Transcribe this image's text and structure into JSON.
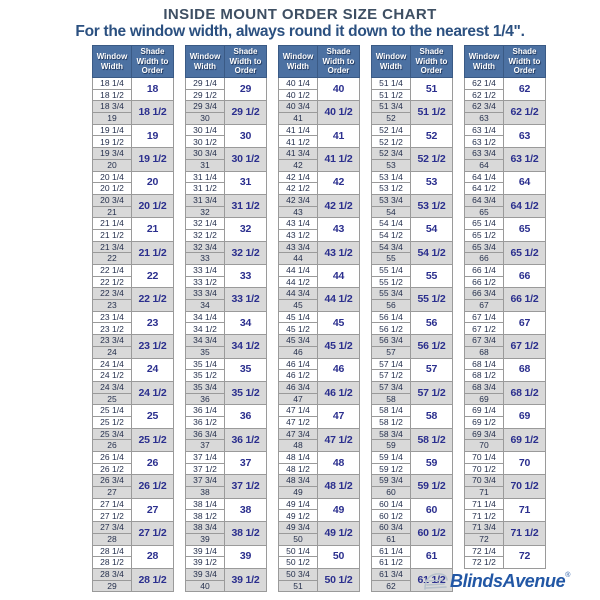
{
  "title": "INSIDE MOUNT ORDER SIZE CHART",
  "subtitle": "For the window width, always round it down to the nearest 1/4\".",
  "logo": {
    "text": "BlindsAvenue",
    "mark": "®"
  },
  "colors": {
    "header_bg": "#4c71a2",
    "header_text": "#ffffff",
    "row_alt_bg": "#d9d9d9",
    "row_bg": "#ffffff",
    "window_text": "#25304d",
    "shade_text": "#2b2f8e",
    "title_text": "#3e4f63",
    "subtitle_text": "#2b5080",
    "logo_text": "#2257a5",
    "grid_line": "#9a9a9a"
  },
  "chart_data": {
    "type": "table",
    "title": "INSIDE MOUNT ORDER SIZE CHART",
    "note": "For the window width, always round it down to the nearest 1/4\".",
    "columns_header": [
      "Window Width",
      "Shade Width to Order"
    ],
    "row_format": [
      "window_width_row1",
      "window_width_row2",
      "shade_width_to_order"
    ],
    "columns": [
      {
        "entries": [
          [
            "18 1/4",
            "18 1/2",
            "18"
          ],
          [
            "18 3/4",
            "19",
            "18 1/2"
          ],
          [
            "19 1/4",
            "19 1/2",
            "19"
          ],
          [
            "19 3/4",
            "20",
            "19 1/2"
          ],
          [
            "20 1/4",
            "20 1/2",
            "20"
          ],
          [
            "20 3/4",
            "21",
            "20 1/2"
          ],
          [
            "21 1/4",
            "21 1/2",
            "21"
          ],
          [
            "21 3/4",
            "22",
            "21 1/2"
          ],
          [
            "22 1/4",
            "22 1/2",
            "22"
          ],
          [
            "22 3/4",
            "23",
            "22 1/2"
          ],
          [
            "23 1/4",
            "23 1/2",
            "23"
          ],
          [
            "23 3/4",
            "24",
            "23 1/2"
          ],
          [
            "24 1/4",
            "24 1/2",
            "24"
          ],
          [
            "24 3/4",
            "25",
            "24 1/2"
          ],
          [
            "25 1/4",
            "25 1/2",
            "25"
          ],
          [
            "25 3/4",
            "26",
            "25 1/2"
          ],
          [
            "26 1/4",
            "26 1/2",
            "26"
          ],
          [
            "26 3/4",
            "27",
            "26 1/2"
          ],
          [
            "27 1/4",
            "27 1/2",
            "27"
          ],
          [
            "27 3/4",
            "28",
            "27 1/2"
          ],
          [
            "28 1/4",
            "28 1/2",
            "28"
          ],
          [
            "28 3/4",
            "29",
            "28 1/2"
          ]
        ]
      },
      {
        "entries": [
          [
            "29 1/4",
            "29 1/2",
            "29"
          ],
          [
            "29 3/4",
            "30",
            "29 1/2"
          ],
          [
            "30 1/4",
            "30 1/2",
            "30"
          ],
          [
            "30 3/4",
            "31",
            "30 1/2"
          ],
          [
            "31 1/4",
            "31 1/2",
            "31"
          ],
          [
            "31 3/4",
            "32",
            "31 1/2"
          ],
          [
            "32 1/4",
            "32 1/2",
            "32"
          ],
          [
            "32 3/4",
            "33",
            "32 1/2"
          ],
          [
            "33 1/4",
            "33 1/2",
            "33"
          ],
          [
            "33 3/4",
            "34",
            "33 1/2"
          ],
          [
            "34 1/4",
            "34 1/2",
            "34"
          ],
          [
            "34 3/4",
            "35",
            "34 1/2"
          ],
          [
            "35 1/4",
            "35 1/2",
            "35"
          ],
          [
            "35 3/4",
            "36",
            "35 1/2"
          ],
          [
            "36 1/4",
            "36 1/2",
            "36"
          ],
          [
            "36 3/4",
            "37",
            "36 1/2"
          ],
          [
            "37 1/4",
            "37 1/2",
            "37"
          ],
          [
            "37 3/4",
            "38",
            "37 1/2"
          ],
          [
            "38 1/4",
            "38 1/2",
            "38"
          ],
          [
            "38 3/4",
            "39",
            "38 1/2"
          ],
          [
            "39 1/4",
            "39 1/2",
            "39"
          ],
          [
            "39 3/4",
            "40",
            "39 1/2"
          ]
        ]
      },
      {
        "entries": [
          [
            "40 1/4",
            "40 1/2",
            "40"
          ],
          [
            "40 3/4",
            "41",
            "40 1/2"
          ],
          [
            "41 1/4",
            "41 1/2",
            "41"
          ],
          [
            "41 3/4",
            "42",
            "41 1/2"
          ],
          [
            "42 1/4",
            "42 1/2",
            "42"
          ],
          [
            "42 3/4",
            "43",
            "42 1/2"
          ],
          [
            "43 1/4",
            "43 1/2",
            "43"
          ],
          [
            "43 3/4",
            "44",
            "43 1/2"
          ],
          [
            "44 1/4",
            "44 1/2",
            "44"
          ],
          [
            "44 3/4",
            "45",
            "44 1/2"
          ],
          [
            "45 1/4",
            "45 1/2",
            "45"
          ],
          [
            "45 3/4",
            "46",
            "45 1/2"
          ],
          [
            "46 1/4",
            "46 1/2",
            "46"
          ],
          [
            "46 3/4",
            "47",
            "46 1/2"
          ],
          [
            "47 1/4",
            "47 1/2",
            "47"
          ],
          [
            "47 3/4",
            "48",
            "47 1/2"
          ],
          [
            "48 1/4",
            "48 1/2",
            "48"
          ],
          [
            "48 3/4",
            "49",
            "48 1/2"
          ],
          [
            "49 1/4",
            "49 1/2",
            "49"
          ],
          [
            "49 3/4",
            "50",
            "49 1/2"
          ],
          [
            "50 1/4",
            "50 1/2",
            "50"
          ],
          [
            "50 3/4",
            "51",
            "50 1/2"
          ]
        ]
      },
      {
        "entries": [
          [
            "51 1/4",
            "51 1/2",
            "51"
          ],
          [
            "51 3/4",
            "52",
            "51 1/2"
          ],
          [
            "52 1/4",
            "52 1/2",
            "52"
          ],
          [
            "52 3/4",
            "53",
            "52 1/2"
          ],
          [
            "53 1/4",
            "53 1/2",
            "53"
          ],
          [
            "53 3/4",
            "54",
            "53 1/2"
          ],
          [
            "54 1/4",
            "54 1/2",
            "54"
          ],
          [
            "54 3/4",
            "55",
            "54 1/2"
          ],
          [
            "55 1/4",
            "55 1/2",
            "55"
          ],
          [
            "55 3/4",
            "56",
            "55 1/2"
          ],
          [
            "56 1/4",
            "56 1/2",
            "56"
          ],
          [
            "56 3/4",
            "57",
            "56 1/2"
          ],
          [
            "57 1/4",
            "57 1/2",
            "57"
          ],
          [
            "57 3/4",
            "58",
            "57 1/2"
          ],
          [
            "58 1/4",
            "58 1/2",
            "58"
          ],
          [
            "58 3/4",
            "59",
            "58 1/2"
          ],
          [
            "59 1/4",
            "59 1/2",
            "59"
          ],
          [
            "59 3/4",
            "60",
            "59 1/2"
          ],
          [
            "60 1/4",
            "60 1/2",
            "60"
          ],
          [
            "60 3/4",
            "61",
            "60 1/2"
          ],
          [
            "61 1/4",
            "61 1/2",
            "61"
          ],
          [
            "61 3/4",
            "62",
            "61 1/2"
          ]
        ]
      },
      {
        "entries": [
          [
            "62 1/4",
            "62 1/2",
            "62"
          ],
          [
            "62 3/4",
            "63",
            "62 1/2"
          ],
          [
            "63 1/4",
            "63 1/2",
            "63"
          ],
          [
            "63 3/4",
            "64",
            "63 1/2"
          ],
          [
            "64 1/4",
            "64 1/2",
            "64"
          ],
          [
            "64 3/4",
            "65",
            "64 1/2"
          ],
          [
            "65 1/4",
            "65 1/2",
            "65"
          ],
          [
            "65 3/4",
            "66",
            "65 1/2"
          ],
          [
            "66 1/4",
            "66 1/2",
            "66"
          ],
          [
            "66 3/4",
            "67",
            "66 1/2"
          ],
          [
            "67 1/4",
            "67 1/2",
            "67"
          ],
          [
            "67 3/4",
            "68",
            "67 1/2"
          ],
          [
            "68 1/4",
            "68 1/2",
            "68"
          ],
          [
            "68 3/4",
            "69",
            "68 1/2"
          ],
          [
            "69 1/4",
            "69 1/2",
            "69"
          ],
          [
            "69 3/4",
            "70",
            "69 1/2"
          ],
          [
            "70 1/4",
            "70 1/2",
            "70"
          ],
          [
            "70 3/4",
            "71",
            "70 1/2"
          ],
          [
            "71 1/4",
            "71 1/2",
            "71"
          ],
          [
            "71 3/4",
            "72",
            "71 1/2"
          ],
          [
            "72 1/4",
            "72 1/2",
            "72"
          ]
        ]
      }
    ]
  }
}
